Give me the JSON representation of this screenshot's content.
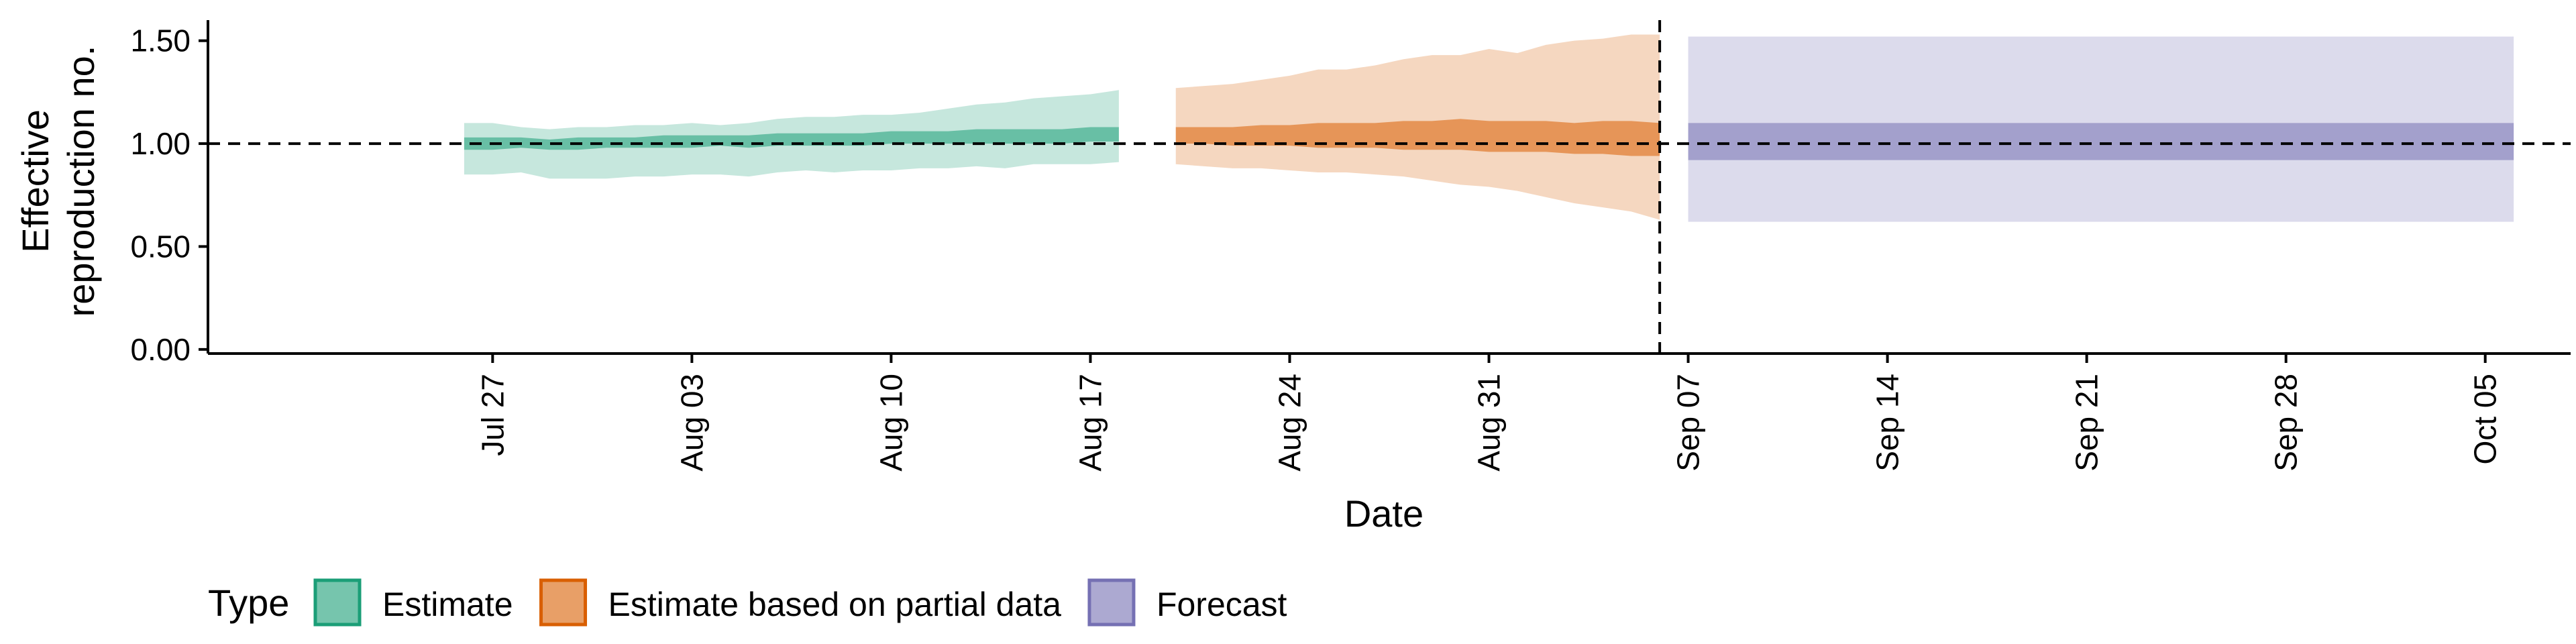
{
  "chart_data": {
    "type": "area",
    "title": "",
    "xlabel": "Date",
    "ylabel_lines": [
      "Effective",
      "reproduction no."
    ],
    "ylim": [
      -0.02,
      1.6
    ],
    "yticks": [
      0.0,
      0.5,
      1.0,
      1.5
    ],
    "ytick_labels": [
      "0.00",
      "0.50",
      "1.00",
      "1.50"
    ],
    "x_range_days": [
      -10,
      73
    ],
    "xticks": [
      {
        "day": 0,
        "label": "Jul 27"
      },
      {
        "day": 7,
        "label": "Aug 03"
      },
      {
        "day": 14,
        "label": "Aug 10"
      },
      {
        "day": 21,
        "label": "Aug 17"
      },
      {
        "day": 28,
        "label": "Aug 24"
      },
      {
        "day": 35,
        "label": "Aug 31"
      },
      {
        "day": 42,
        "label": "Sep 07"
      },
      {
        "day": 49,
        "label": "Sep 14"
      },
      {
        "day": 56,
        "label": "Sep 21"
      },
      {
        "day": 63,
        "label": "Sep 28"
      },
      {
        "day": 70,
        "label": "Oct 05"
      }
    ],
    "reference_hline": 1.0,
    "reference_vline_day": 41,
    "legend": {
      "title": "Type",
      "position": "bottom-left",
      "entries": [
        {
          "label": "Estimate",
          "color": "#1b9e77"
        },
        {
          "label": "Estimate based on partial data",
          "color": "#d95f02"
        },
        {
          "label": "Forecast",
          "color": "#7570b3"
        }
      ]
    },
    "series": [
      {
        "name": "Estimate",
        "color": "#1b9e77",
        "days": [
          -1,
          0,
          1,
          2,
          3,
          4,
          5,
          6,
          7,
          8,
          9,
          10,
          11,
          12,
          13,
          14,
          15,
          16,
          17,
          18,
          19,
          20,
          21,
          22
        ],
        "lower90": [
          0.85,
          0.85,
          0.86,
          0.83,
          0.83,
          0.83,
          0.84,
          0.84,
          0.85,
          0.85,
          0.84,
          0.86,
          0.87,
          0.86,
          0.87,
          0.87,
          0.88,
          0.88,
          0.89,
          0.88,
          0.9,
          0.9,
          0.9,
          0.91
        ],
        "upper90": [
          1.1,
          1.1,
          1.08,
          1.07,
          1.08,
          1.08,
          1.09,
          1.09,
          1.1,
          1.09,
          1.1,
          1.12,
          1.13,
          1.13,
          1.14,
          1.14,
          1.15,
          1.17,
          1.19,
          1.2,
          1.22,
          1.23,
          1.24,
          1.26
        ],
        "lower50": [
          0.97,
          0.97,
          0.98,
          0.97,
          0.97,
          0.98,
          0.98,
          0.98,
          0.98,
          0.99,
          0.98,
          0.99,
          0.99,
          0.99,
          0.99,
          1.0,
          1.0,
          1.0,
          1.0,
          1.0,
          1.0,
          1.0,
          1.01,
          1.01
        ],
        "upper50": [
          1.03,
          1.03,
          1.03,
          1.02,
          1.03,
          1.03,
          1.03,
          1.04,
          1.04,
          1.04,
          1.04,
          1.05,
          1.05,
          1.05,
          1.05,
          1.06,
          1.06,
          1.06,
          1.07,
          1.07,
          1.07,
          1.07,
          1.08,
          1.08
        ]
      },
      {
        "name": "Estimate based on partial data",
        "color": "#d95f02",
        "days": [
          24,
          25,
          26,
          27,
          28,
          29,
          30,
          31,
          32,
          33,
          34,
          35,
          36,
          37,
          38,
          39,
          40,
          41
        ],
        "lower90": [
          0.9,
          0.89,
          0.88,
          0.88,
          0.87,
          0.86,
          0.86,
          0.85,
          0.84,
          0.82,
          0.8,
          0.79,
          0.77,
          0.74,
          0.71,
          0.69,
          0.67,
          0.63
        ],
        "upper90": [
          1.27,
          1.28,
          1.29,
          1.31,
          1.33,
          1.36,
          1.36,
          1.38,
          1.41,
          1.43,
          1.43,
          1.46,
          1.44,
          1.48,
          1.5,
          1.51,
          1.53,
          1.53
        ],
        "lower50": [
          1.0,
          1.0,
          0.99,
          0.99,
          0.99,
          0.98,
          0.98,
          0.98,
          0.97,
          0.97,
          0.97,
          0.96,
          0.96,
          0.96,
          0.95,
          0.95,
          0.94,
          0.94
        ],
        "upper50": [
          1.08,
          1.08,
          1.08,
          1.09,
          1.09,
          1.1,
          1.1,
          1.1,
          1.11,
          1.11,
          1.12,
          1.11,
          1.11,
          1.11,
          1.1,
          1.11,
          1.11,
          1.1
        ]
      },
      {
        "name": "Forecast",
        "color": "#7570b3",
        "days": [
          42,
          71
        ],
        "lower90": [
          0.62,
          0.62
        ],
        "upper90": [
          1.52,
          1.52
        ],
        "lower50": [
          0.92,
          0.92
        ],
        "upper50": [
          1.1,
          1.1
        ]
      }
    ]
  }
}
